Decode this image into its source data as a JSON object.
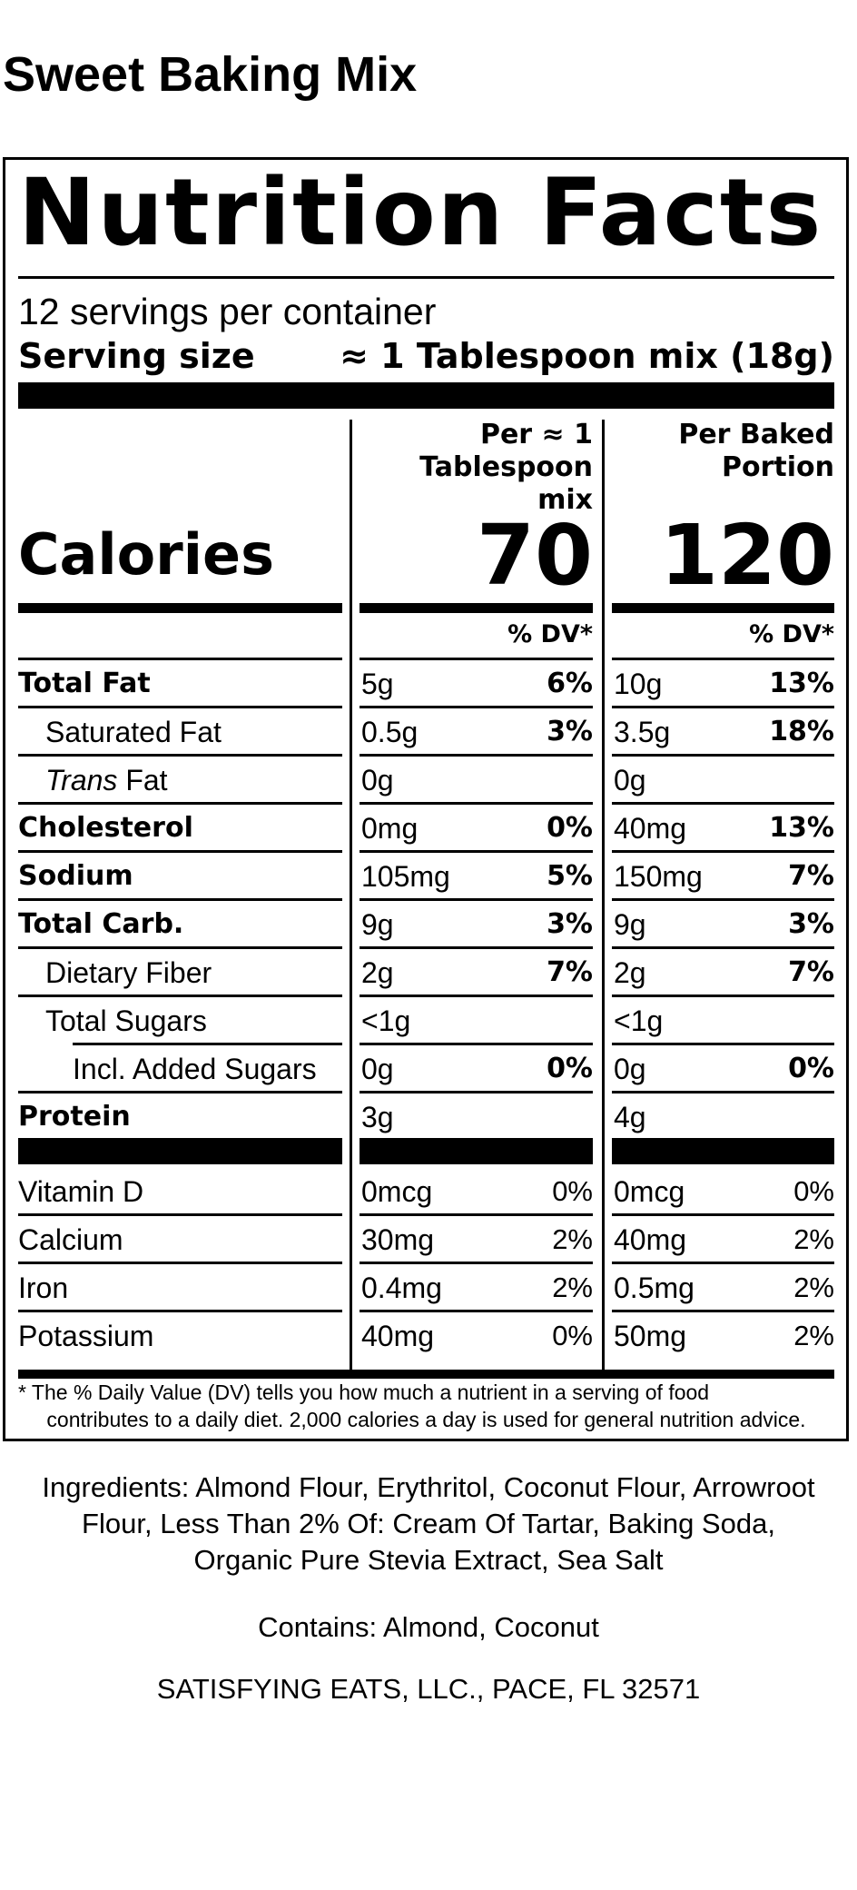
{
  "product_title": "Sweet Baking Mix",
  "label": {
    "title": "Nutrition Facts",
    "servings_per_container": "12 servings per container",
    "serving_size_label": "Serving size",
    "serving_size_value": "≈ 1 Tablespoon mix (18g)",
    "columns": [
      {
        "header_lines": [
          "Per ≈ 1",
          "Tablespoon",
          "mix"
        ],
        "calories": "70"
      },
      {
        "header_lines": [
          "Per Baked",
          "Portion"
        ],
        "calories": "120"
      }
    ],
    "calories_label": "Calories",
    "dv_header": "% DV*",
    "nutrients": [
      {
        "name": "Total Fat",
        "bold": true,
        "indent": 0,
        "a_amt": "5g",
        "a_dv": "6%",
        "b_amt": "10g",
        "b_dv": "13%"
      },
      {
        "name": "Saturated Fat",
        "bold": false,
        "indent": 1,
        "a_amt": "0.5g",
        "a_dv": "3%",
        "b_amt": "3.5g",
        "b_dv": "18%"
      },
      {
        "name_italic": "Trans",
        "name": " Fat",
        "bold": false,
        "indent": 1,
        "a_amt": "0g",
        "a_dv": "",
        "b_amt": "0g",
        "b_dv": ""
      },
      {
        "name": "Cholesterol",
        "bold": true,
        "indent": 0,
        "a_amt": "0mg",
        "a_dv": "0%",
        "b_amt": "40mg",
        "b_dv": "13%"
      },
      {
        "name": "Sodium",
        "bold": true,
        "indent": 0,
        "a_amt": "105mg",
        "a_dv": "5%",
        "b_amt": "150mg",
        "b_dv": "7%"
      },
      {
        "name": "Total Carb.",
        "bold": true,
        "indent": 0,
        "a_amt": "9g",
        "a_dv": "3%",
        "b_amt": "9g",
        "b_dv": "3%"
      },
      {
        "name": "Dietary Fiber",
        "bold": false,
        "indent": 1,
        "a_amt": "2g",
        "a_dv": "7%",
        "b_amt": "2g",
        "b_dv": "7%"
      },
      {
        "name": "Total Sugars",
        "bold": false,
        "indent": 1,
        "a_amt": "<1g",
        "a_dv": "",
        "b_amt": "<1g",
        "b_dv": ""
      },
      {
        "name": "Incl. Added Sugars",
        "bold": false,
        "indent": 2,
        "a_amt": "0g",
        "a_dv": "0%",
        "b_amt": "0g",
        "b_dv": "0%"
      },
      {
        "name": "Protein",
        "bold": true,
        "indent": 0,
        "a_amt": "3g",
        "a_dv": "",
        "b_amt": "4g",
        "b_dv": ""
      }
    ],
    "vitamins": [
      {
        "name": "Vitamin D",
        "a_amt": "0mcg",
        "a_dv": "0%",
        "b_amt": "0mcg",
        "b_dv": "0%"
      },
      {
        "name": "Calcium",
        "a_amt": "30mg",
        "a_dv": "2%",
        "b_amt": "40mg",
        "b_dv": "2%"
      },
      {
        "name": "Iron",
        "a_amt": "0.4mg",
        "a_dv": "2%",
        "b_amt": "0.5mg",
        "b_dv": "2%"
      },
      {
        "name": "Potassium",
        "a_amt": "40mg",
        "a_dv": "0%",
        "b_amt": "50mg",
        "b_dv": "2%"
      }
    ],
    "footnote_line1": "* The % Daily Value (DV) tells you how much a nutrient in a serving of food",
    "footnote_line2": "contributes to a daily diet. 2,000 calories a day is used for general nutrition advice."
  },
  "ingredients_lines": [
    "Ingredients: Almond Flour, Erythritol, Coconut Flour, Arrowroot",
    "Flour, Less Than 2% Of: Cream Of Tartar, Baking Soda,",
    "Organic Pure Stevia Extract, Sea Salt"
  ],
  "contains": "Contains: Almond, Coconut",
  "company": "SATISFYING EATS, LLC., PACE, FL 32571"
}
